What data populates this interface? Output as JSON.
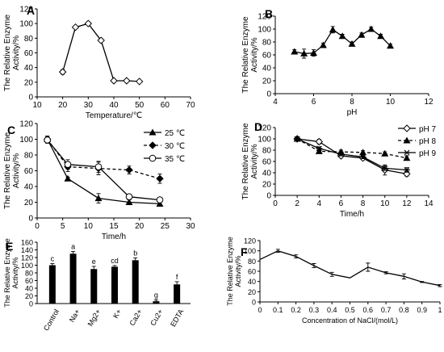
{
  "chart_data": [
    {
      "panel": "A",
      "type": "line",
      "xlabel": "Temperature/℃",
      "ylabel": "The Relative Enzyme Activity/%",
      "xlim": [
        10,
        70
      ],
      "ylim": [
        0,
        120
      ],
      "xticks": [
        "10",
        "20",
        "30",
        "40",
        "50",
        "60",
        "70"
      ],
      "yticks": [
        "0",
        "20",
        "40",
        "60",
        "80",
        "100",
        "120"
      ],
      "series": [
        {
          "marker": "diamond-open",
          "dash": false,
          "points": [
            [
              20,
              34
            ],
            [
              25,
              95
            ],
            [
              30,
              100
            ],
            [
              35,
              77
            ],
            [
              40,
              22
            ],
            [
              45,
              22
            ],
            [
              50,
              21
            ]
          ],
          "errors": [
            3,
            2,
            2,
            2,
            1,
            1,
            1
          ]
        }
      ]
    },
    {
      "panel": "B",
      "type": "line",
      "xlabel": "pH",
      "ylabel": "The Relative Enzyme Activity/%",
      "xlim": [
        4,
        12
      ],
      "ylim": [
        0,
        120
      ],
      "xticks": [
        "4",
        "6",
        "8",
        "10",
        "12"
      ],
      "yticks": [
        "0",
        "20",
        "40",
        "60",
        "80",
        "100",
        "120"
      ],
      "series": [
        {
          "marker": "triangle",
          "dash": false,
          "points": [
            [
              5,
              65
            ],
            [
              5.5,
              62
            ],
            [
              6,
              63
            ],
            [
              6.5,
              75
            ],
            [
              7,
              99
            ],
            [
              7.5,
              89
            ],
            [
              8,
              77
            ],
            [
              8.5,
              91
            ],
            [
              9,
              100
            ],
            [
              9.5,
              89
            ],
            [
              10,
              74
            ]
          ],
          "errors": [
            3,
            7,
            5,
            3,
            5,
            3,
            3,
            3,
            3,
            3,
            3
          ]
        }
      ]
    },
    {
      "panel": "C",
      "type": "line",
      "xlabel": "Time/h",
      "ylabel": "The Relative Enzyme Activity/%",
      "xlim": [
        0,
        30
      ],
      "ylim": [
        0,
        120
      ],
      "xticks": [
        "0",
        "5",
        "10",
        "15",
        "20",
        "25",
        "30"
      ],
      "yticks": [
        "0",
        "20",
        "40",
        "60",
        "80",
        "100",
        "120"
      ],
      "legend": "top-right",
      "series": [
        {
          "name": "25 ℃",
          "marker": "triangle",
          "dash": false,
          "points": [
            [
              2,
              100
            ],
            [
              6,
              50
            ],
            [
              12,
              25
            ],
            [
              18,
              20
            ],
            [
              24,
              18
            ]
          ],
          "errors": [
            4,
            2,
            6,
            3,
            3
          ]
        },
        {
          "name": "30 ℃",
          "marker": "diamond",
          "dash": true,
          "points": [
            [
              2,
              100
            ],
            [
              6,
              65
            ],
            [
              12,
              63
            ],
            [
              18,
              61
            ],
            [
              24,
              50
            ]
          ],
          "errors": [
            4,
            6,
            8,
            5,
            6
          ]
        },
        {
          "name": "35 ℃",
          "marker": "circle-open",
          "dash": false,
          "points": [
            [
              2,
              99
            ],
            [
              6,
              68
            ],
            [
              12,
              65
            ],
            [
              18,
              27
            ],
            [
              24,
              23
            ]
          ],
          "errors": [
            4,
            6,
            7,
            3,
            2
          ]
        }
      ]
    },
    {
      "panel": "D",
      "type": "line",
      "xlabel": "Time/h",
      "ylabel": "The Relative Enzyme Activity/%",
      "xlim": [
        0,
        14
      ],
      "ylim": [
        0,
        120
      ],
      "xticks": [
        "0",
        "2",
        "4",
        "6",
        "8",
        "10",
        "12",
        "14"
      ],
      "yticks": [
        "0",
        "20",
        "40",
        "60",
        "80",
        "100",
        "120"
      ],
      "legend": "top-right",
      "series": [
        {
          "name": "pH 7",
          "marker": "diamond-open",
          "dash": false,
          "points": [
            [
              2,
              100
            ],
            [
              4,
              95
            ],
            [
              6,
              70
            ],
            [
              8,
              66
            ],
            [
              10,
              45
            ],
            [
              12,
              38
            ]
          ],
          "errors": [
            3,
            4,
            3,
            3,
            9,
            4
          ]
        },
        {
          "name": "pH 8",
          "marker": "triangle",
          "dash": true,
          "points": [
            [
              2,
              100
            ],
            [
              4,
              78
            ],
            [
              6,
              77
            ],
            [
              8,
              76
            ],
            [
              10,
              74
            ],
            [
              12,
              66
            ]
          ],
          "errors": [
            3,
            3,
            3,
            3,
            3,
            4
          ]
        },
        {
          "name": "pH 9",
          "marker": "star",
          "dash": false,
          "points": [
            [
              2,
              100
            ],
            [
              4,
              83
            ],
            [
              6,
              73
            ],
            [
              8,
              68
            ],
            [
              10,
              48
            ],
            [
              12,
              45
            ]
          ],
          "errors": [
            3,
            3,
            3,
            3,
            4,
            4
          ]
        }
      ]
    },
    {
      "panel": "E",
      "type": "bar",
      "ylabel": "The Relative Enzyme Activity/%",
      "ylim": [
        0,
        160
      ],
      "yticks": [
        "0",
        "20",
        "40",
        "60",
        "80",
        "100",
        "120",
        "140",
        "160"
      ],
      "categories": [
        "Control",
        "Na+",
        "Mg2+",
        "K+",
        "Ca2+",
        "Cu2+",
        "EDTA"
      ],
      "values": [
        100,
        130,
        90,
        96,
        113,
        6,
        50
      ],
      "errors": [
        4,
        6,
        7,
        3,
        6,
        3,
        7
      ],
      "letters": [
        "c",
        "a",
        "e",
        "cd",
        "b",
        "g",
        "f"
      ]
    },
    {
      "panel": "F",
      "type": "line",
      "xlabel": "Concentration of NaCl/(mol/L)",
      "ylabel": "The Relative Enzyme Activity/%",
      "xlim": [
        0,
        1
      ],
      "ylim": [
        0,
        120
      ],
      "xticks": [
        "0",
        "0.1",
        "0.2",
        "0.3",
        "0.4",
        "0.5",
        "0.6",
        "0.7",
        "0.8",
        "0.9",
        "1"
      ],
      "yticks": [
        "0",
        "20",
        "40",
        "60",
        "80",
        "100",
        "120"
      ],
      "series": [
        {
          "marker": "none",
          "dash": false,
          "points": [
            [
              0,
              83
            ],
            [
              0.1,
              100
            ],
            [
              0.2,
              89
            ],
            [
              0.3,
              71
            ],
            [
              0.4,
              54
            ],
            [
              0.5,
              47
            ],
            [
              0.6,
              68
            ],
            [
              0.7,
              57
            ],
            [
              0.8,
              50
            ],
            [
              0.9,
              39
            ],
            [
              1,
              32
            ]
          ],
          "errors": [
            0,
            3,
            3,
            4,
            4,
            0,
            8,
            2,
            5,
            1,
            2
          ]
        }
      ]
    }
  ]
}
